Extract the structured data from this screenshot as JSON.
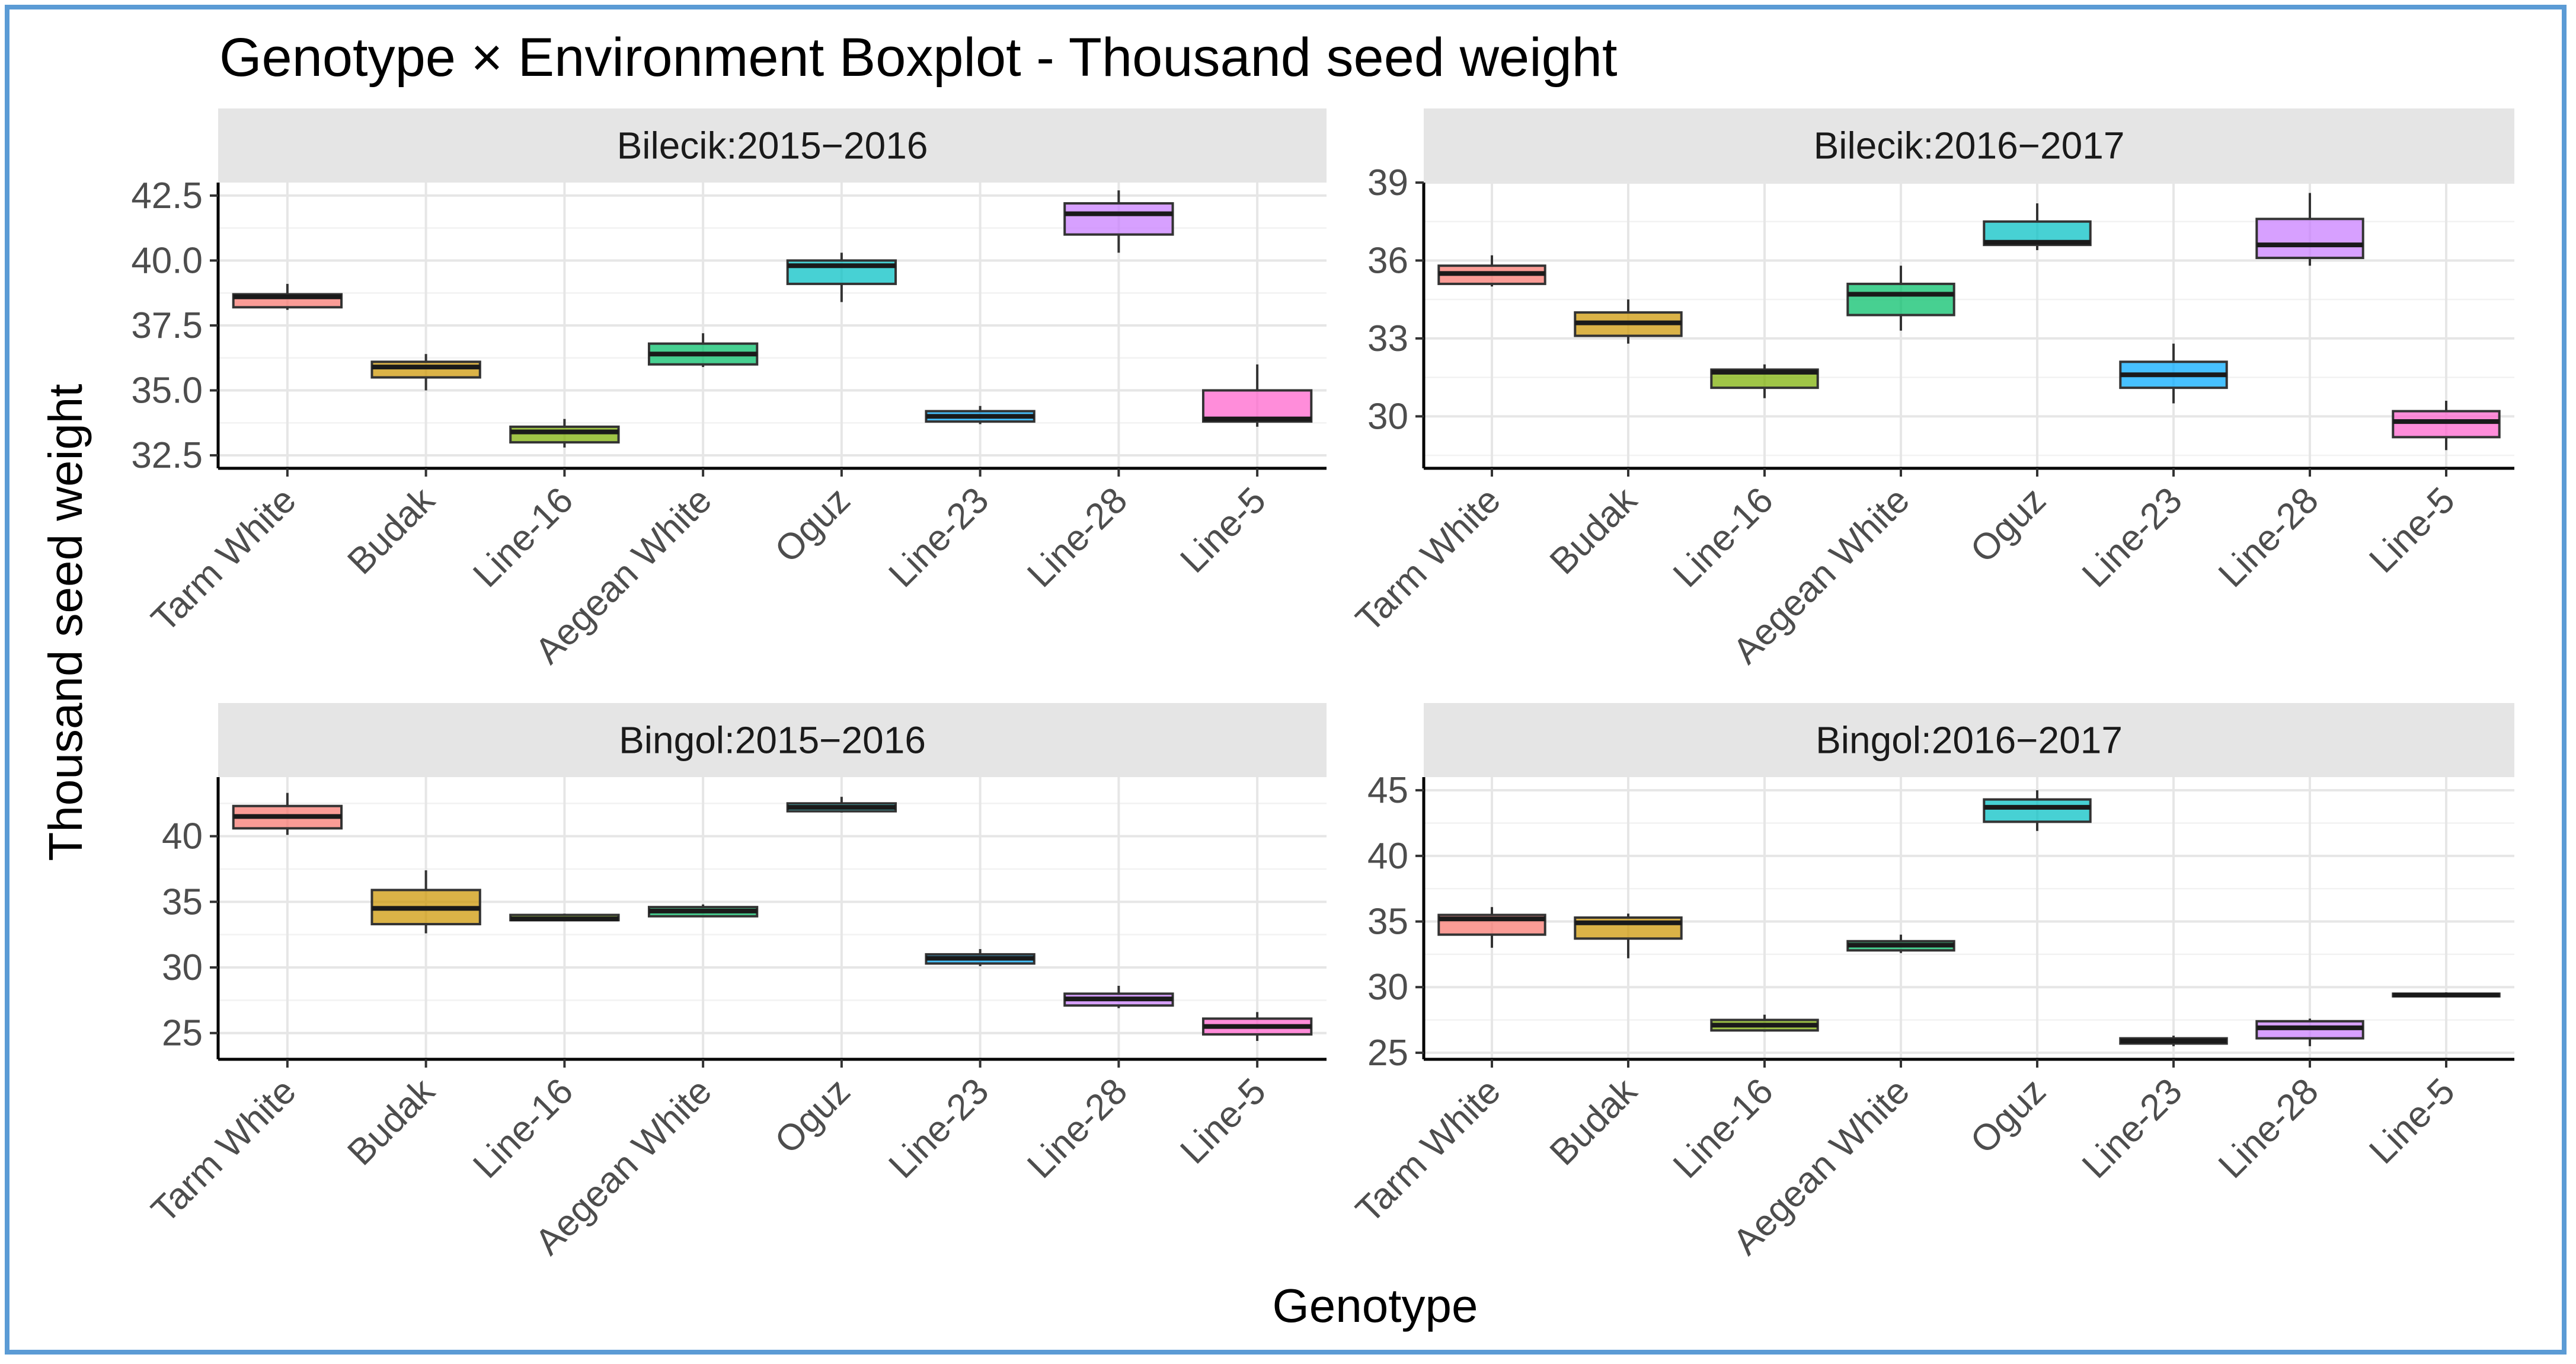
{
  "chart_data": {
    "type": "boxplot",
    "title": "Genotype × Environment Boxplot - Thousand seed weight",
    "xlabel": "Genotype",
    "ylabel": "Thousand seed weight",
    "categories": [
      "Tarm White",
      "Budak",
      "Line-16",
      "Aegean White",
      "Oguz",
      "Line-23",
      "Line-28",
      "Line-5"
    ],
    "colors": [
      "#f8766d",
      "#cd9600",
      "#7cae00",
      "#00be67",
      "#00bfc4",
      "#00a9ff",
      "#c77cff",
      "#ff61cc"
    ],
    "panels": [
      {
        "name": "Bilecik:2015−2016",
        "ylim": [
          32.0,
          43.0
        ],
        "yticks": [
          32.5,
          35.0,
          37.5,
          40.0,
          42.5
        ],
        "ytick_labels": [
          "32.5",
          "35.0",
          "37.5",
          "40.0",
          "42.5"
        ],
        "boxes": [
          {
            "min": 38.1,
            "q1": 38.2,
            "median": 38.6,
            "q3": 38.7,
            "max": 39.1
          },
          {
            "min": 35.0,
            "q1": 35.5,
            "median": 35.9,
            "q3": 36.1,
            "max": 36.4
          },
          {
            "min": 32.8,
            "q1": 33.0,
            "median": 33.4,
            "q3": 33.6,
            "max": 33.9
          },
          {
            "min": 35.9,
            "q1": 36.0,
            "median": 36.4,
            "q3": 36.8,
            "max": 37.2
          },
          {
            "min": 38.4,
            "q1": 39.1,
            "median": 39.8,
            "q3": 40.0,
            "max": 40.3
          },
          {
            "min": 33.7,
            "q1": 33.8,
            "median": 34.0,
            "q3": 34.2,
            "max": 34.4
          },
          {
            "min": 40.3,
            "q1": 41.0,
            "median": 41.8,
            "q3": 42.2,
            "max": 42.7
          },
          {
            "min": 33.6,
            "q1": 33.8,
            "median": 33.9,
            "q3": 35.0,
            "max": 36.0
          }
        ]
      },
      {
        "name": "Bilecik:2016−2017",
        "ylim": [
          28.0,
          39.0
        ],
        "yticks": [
          30,
          33,
          36,
          39
        ],
        "ytick_labels": [
          "30",
          "33",
          "36",
          "39"
        ],
        "boxes": [
          {
            "min": 35.0,
            "q1": 35.1,
            "median": 35.5,
            "q3": 35.8,
            "max": 36.2
          },
          {
            "min": 32.8,
            "q1": 33.1,
            "median": 33.6,
            "q3": 34.0,
            "max": 34.5
          },
          {
            "min": 30.7,
            "q1": 31.1,
            "median": 31.7,
            "q3": 31.8,
            "max": 32.0
          },
          {
            "min": 33.3,
            "q1": 33.9,
            "median": 34.7,
            "q3": 35.1,
            "max": 35.8
          },
          {
            "min": 36.4,
            "q1": 36.6,
            "median": 36.7,
            "q3": 37.5,
            "max": 38.2
          },
          {
            "min": 30.5,
            "q1": 31.1,
            "median": 31.6,
            "q3": 32.1,
            "max": 32.8
          },
          {
            "min": 35.8,
            "q1": 36.1,
            "median": 36.6,
            "q3": 37.6,
            "max": 38.6
          },
          {
            "min": 28.7,
            "q1": 29.2,
            "median": 29.8,
            "q3": 30.2,
            "max": 30.6
          }
        ]
      },
      {
        "name": "Bingol:2015−2016",
        "ylim": [
          23.0,
          44.5
        ],
        "yticks": [
          25,
          30,
          35,
          40
        ],
        "ytick_labels": [
          "25",
          "30",
          "35",
          "40"
        ],
        "boxes": [
          {
            "min": 40.1,
            "q1": 40.6,
            "median": 41.5,
            "q3": 42.3,
            "max": 43.3
          },
          {
            "min": 32.6,
            "q1": 33.3,
            "median": 34.5,
            "q3": 35.9,
            "max": 37.4
          },
          {
            "min": 33.6,
            "q1": 33.6,
            "median": 33.7,
            "q3": 34.0,
            "max": 34.1
          },
          {
            "min": 33.9,
            "q1": 33.9,
            "median": 34.3,
            "q3": 34.6,
            "max": 34.8
          },
          {
            "min": 41.8,
            "q1": 41.9,
            "median": 42.2,
            "q3": 42.5,
            "max": 43.0
          },
          {
            "min": 30.1,
            "q1": 30.3,
            "median": 30.7,
            "q3": 31.0,
            "max": 31.4
          },
          {
            "min": 26.9,
            "q1": 27.1,
            "median": 27.6,
            "q3": 28.0,
            "max": 28.6
          },
          {
            "min": 24.4,
            "q1": 24.9,
            "median": 25.5,
            "q3": 26.1,
            "max": 26.6
          }
        ]
      },
      {
        "name": "Bingol:2016−2017",
        "ylim": [
          24.5,
          46.0
        ],
        "yticks": [
          25,
          30,
          35,
          40,
          45
        ],
        "ytick_labels": [
          "25",
          "30",
          "35",
          "40",
          "45"
        ],
        "boxes": [
          {
            "min": 33.0,
            "q1": 34.0,
            "median": 35.2,
            "q3": 35.5,
            "max": 36.1
          },
          {
            "min": 32.2,
            "q1": 33.7,
            "median": 34.9,
            "q3": 35.3,
            "max": 35.6
          },
          {
            "min": 26.6,
            "q1": 26.7,
            "median": 27.1,
            "q3": 27.5,
            "max": 27.9
          },
          {
            "min": 32.6,
            "q1": 32.8,
            "median": 33.2,
            "q3": 33.5,
            "max": 34.0
          },
          {
            "min": 41.9,
            "q1": 42.6,
            "median": 43.7,
            "q3": 44.3,
            "max": 45.0
          },
          {
            "min": 25.5,
            "q1": 25.7,
            "median": 25.9,
            "q3": 26.1,
            "max": 26.3
          },
          {
            "min": 25.5,
            "q1": 26.1,
            "median": 26.9,
            "q3": 27.4,
            "max": 27.6
          },
          {
            "min": 29.3,
            "q1": 29.3,
            "median": 29.4,
            "q3": 29.5,
            "max": 29.6
          }
        ]
      }
    ]
  }
}
